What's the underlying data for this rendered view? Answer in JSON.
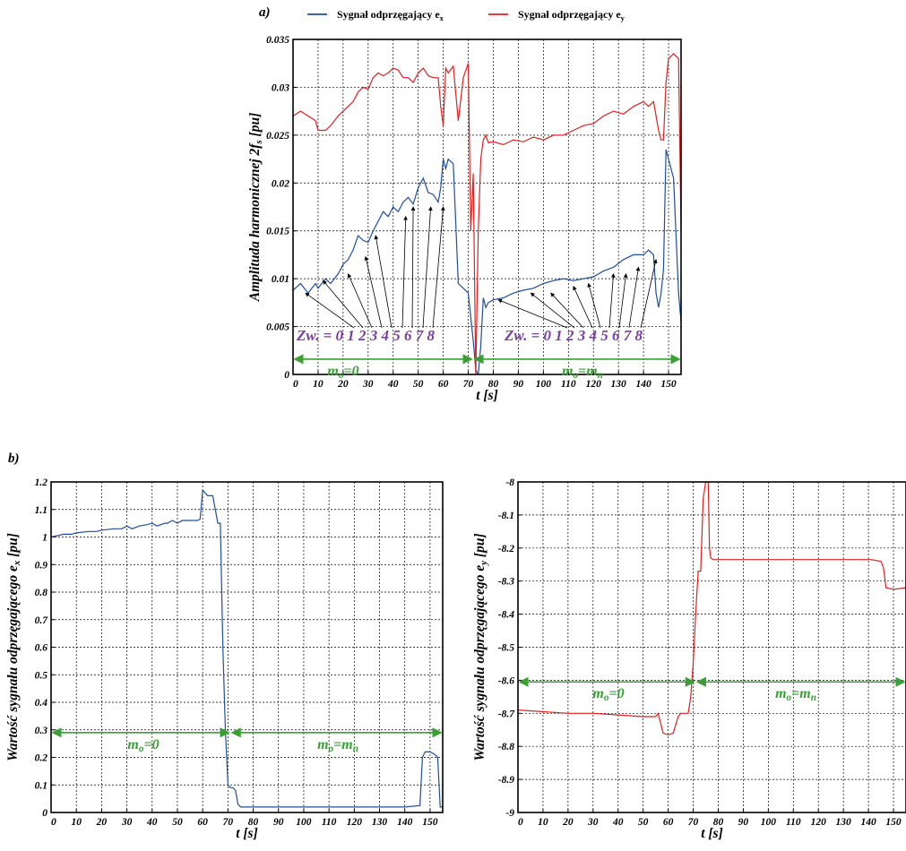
{
  "chart_data": [
    {
      "type": "line",
      "panel_label": "a)",
      "xlabel": "t [s]",
      "ylabel": "Amplituda harmonicznej 2f",
      "ylabel_sub": "s",
      "ylabel_unit": " [pu]",
      "xlim": [
        0,
        155
      ],
      "ylim": [
        0,
        0.035
      ],
      "x_ticks": [
        0,
        10,
        20,
        30,
        40,
        50,
        60,
        70,
        80,
        90,
        100,
        110,
        120,
        130,
        140,
        150
      ],
      "x_tick_labels": [
        "0",
        "10",
        "20",
        "30",
        "40",
        "50",
        "60",
        "70",
        "80",
        "90",
        "100",
        "110",
        "120",
        "130",
        "140",
        "150"
      ],
      "y_ticks": [
        0,
        0.005,
        0.01,
        0.015,
        0.02,
        0.025,
        0.03,
        0.035
      ],
      "y_tick_labels": [
        "0",
        "0.005",
        "0.01",
        "0.015",
        "0.02",
        "0.025",
        "0.03",
        "0.035"
      ],
      "grid": true,
      "legend": [
        {
          "text": "Sygnał odprzęgający e",
          "sub": "x",
          "color": "#1f4e9c"
        },
        {
          "text": "Sygnał odprzęgający e",
          "sub": "y",
          "color": "#e02020"
        }
      ],
      "legend_position": "top",
      "series": [
        {
          "name": "Sygnał odprzęgający ex",
          "color": "#1f4e9c",
          "x": [
            0,
            3,
            6,
            9,
            10,
            13,
            15,
            18,
            20,
            22,
            24,
            26,
            28,
            30,
            32,
            34,
            36,
            38,
            40,
            42,
            44,
            46,
            48,
            50,
            52,
            54,
            56,
            58,
            59,
            60,
            61,
            62,
            64,
            66,
            68,
            70,
            71,
            72,
            73,
            74,
            75,
            76,
            77,
            78,
            80,
            84,
            88,
            92,
            96,
            100,
            104,
            108,
            112,
            116,
            120,
            124,
            128,
            132,
            136,
            140,
            142,
            144,
            145,
            146,
            147,
            148,
            149,
            150,
            152,
            154,
            155
          ],
          "y": [
            0.0088,
            0.0095,
            0.0085,
            0.0095,
            0.009,
            0.01,
            0.0095,
            0.0105,
            0.0115,
            0.012,
            0.013,
            0.0145,
            0.014,
            0.0138,
            0.015,
            0.016,
            0.017,
            0.0165,
            0.0175,
            0.017,
            0.018,
            0.0185,
            0.0178,
            0.0195,
            0.0205,
            0.019,
            0.0188,
            0.018,
            0.0195,
            0.0225,
            0.0215,
            0.0225,
            0.022,
            0.0095,
            0.009,
            0.0085,
            0.006,
            0.0035,
            0.0005,
            0.0,
            0.003,
            0.008,
            0.007,
            0.0075,
            0.0078,
            0.008,
            0.0085,
            0.0088,
            0.009,
            0.0095,
            0.0098,
            0.01,
            0.0098,
            0.01,
            0.0102,
            0.0108,
            0.0112,
            0.012,
            0.0125,
            0.0125,
            0.013,
            0.0125,
            0.0085,
            0.007,
            0.0085,
            0.011,
            0.0235,
            0.0225,
            0.0205,
            0.0085,
            0.0055
          ]
        },
        {
          "name": "Sygnał odprzęgający ey",
          "color": "#e02020",
          "x": [
            0,
            3,
            6,
            9,
            10,
            13,
            15,
            18,
            20,
            22,
            24,
            26,
            28,
            30,
            32,
            34,
            36,
            38,
            40,
            42,
            44,
            46,
            48,
            50,
            52,
            54,
            56,
            58,
            59,
            60,
            61,
            62,
            64,
            66,
            68,
            70,
            71,
            72,
            73,
            74,
            75,
            76,
            77,
            78,
            80,
            84,
            88,
            92,
            96,
            100,
            104,
            108,
            112,
            116,
            120,
            124,
            128,
            132,
            136,
            140,
            142,
            144,
            145,
            146,
            147,
            148,
            149,
            150,
            152,
            154,
            155
          ],
          "y": [
            0.027,
            0.0275,
            0.027,
            0.0265,
            0.0255,
            0.0255,
            0.026,
            0.027,
            0.0275,
            0.028,
            0.0285,
            0.0295,
            0.03,
            0.0298,
            0.031,
            0.0315,
            0.0312,
            0.0315,
            0.032,
            0.0318,
            0.031,
            0.031,
            0.0305,
            0.0315,
            0.032,
            0.0312,
            0.031,
            0.031,
            0.028,
            0.026,
            0.032,
            0.0315,
            0.0322,
            0.0265,
            0.031,
            0.0325,
            0.015,
            0.021,
            0.0,
            0.015,
            0.0225,
            0.0245,
            0.025,
            0.0242,
            0.0243,
            0.024,
            0.0245,
            0.0243,
            0.0248,
            0.0245,
            0.025,
            0.025,
            0.0255,
            0.026,
            0.0262,
            0.027,
            0.0275,
            0.0272,
            0.028,
            0.0285,
            0.028,
            0.0285,
            0.027,
            0.0255,
            0.0245,
            0.0245,
            0.0305,
            0.033,
            0.0335,
            0.033,
            0.015
          ]
        }
      ],
      "annotations": {
        "zw_left": "Zw. = 0 1 2 3 4 5 6 7 8",
        "zw_right": "Zw. = 0 1 2 3 4 5 6 7 8",
        "mode_left": "m",
        "mode_left_sub": "o",
        "mode_left_rhs": "=0",
        "mode_right": "m",
        "mode_right_sub": "o",
        "mode_right_rhs": "=m",
        "mode_right_rhs_sub": "n"
      }
    },
    {
      "type": "line",
      "panel_label": "b)",
      "xlabel": "t [s]",
      "ylabel": "Wartość sygnału odprzęgającego e",
      "ylabel_sub": "x",
      "ylabel_unit": " [pu]",
      "xlim": [
        0,
        155
      ],
      "ylim": [
        0,
        1.2
      ],
      "x_ticks": [
        0,
        10,
        20,
        30,
        40,
        50,
        60,
        70,
        80,
        90,
        100,
        110,
        120,
        130,
        140,
        150
      ],
      "x_tick_labels": [
        "0",
        "10",
        "20",
        "30",
        "40",
        "50",
        "60",
        "70",
        "80",
        "90",
        "100",
        "110",
        "120",
        "130",
        "140",
        "150"
      ],
      "y_ticks": [
        0,
        0.1,
        0.2,
        0.3,
        0.4,
        0.5,
        0.6,
        0.7,
        0.8,
        0.9,
        1.0,
        1.1,
        1.2
      ],
      "y_tick_labels": [
        "0",
        "0.1",
        "0.2",
        "0.3",
        "0.4",
        "0.5",
        "0.6",
        "0.7",
        "0.8",
        "0.9",
        "1",
        "1.1",
        "1.2"
      ],
      "grid": true,
      "series": [
        {
          "color": "#1f4e9c",
          "x": [
            0,
            5,
            8,
            10,
            15,
            18,
            20,
            25,
            28,
            30,
            32,
            35,
            38,
            40,
            42,
            45,
            46,
            48,
            50,
            52,
            54,
            56,
            58,
            59,
            60,
            62,
            64,
            66,
            67,
            68,
            69,
            70,
            71,
            72,
            73,
            74,
            75,
            80,
            90,
            100,
            110,
            120,
            130,
            140,
            146,
            147,
            148,
            150,
            152,
            153,
            154,
            155
          ],
          "y": [
            1.0,
            1.01,
            1.01,
            1.015,
            1.02,
            1.02,
            1.025,
            1.03,
            1.03,
            1.04,
            1.03,
            1.04,
            1.045,
            1.05,
            1.04,
            1.05,
            1.05,
            1.06,
            1.05,
            1.06,
            1.06,
            1.06,
            1.06,
            1.065,
            1.17,
            1.15,
            1.15,
            1.05,
            1.05,
            0.6,
            0.3,
            0.1,
            0.09,
            0.09,
            0.08,
            0.03,
            0.02,
            0.02,
            0.02,
            0.02,
            0.02,
            0.02,
            0.02,
            0.02,
            0.025,
            0.2,
            0.22,
            0.22,
            0.21,
            0.2,
            0.02,
            0.02
          ]
        }
      ],
      "annotations": {
        "mode_left": "m",
        "mode_left_sub": "o",
        "mode_left_rhs": "=0",
        "mode_right": "m",
        "mode_right_sub": "o",
        "mode_right_rhs": "=m",
        "mode_right_rhs_sub": "n"
      }
    },
    {
      "type": "line",
      "xlabel": "t [s]",
      "ylabel": "Wartość sygnału odprzęgającego e",
      "ylabel_sub": "y",
      "ylabel_unit": " [pu]",
      "xlim": [
        0,
        155
      ],
      "ylim": [
        -9,
        -8
      ],
      "x_ticks": [
        0,
        10,
        20,
        30,
        40,
        50,
        60,
        70,
        80,
        90,
        100,
        110,
        120,
        130,
        140,
        150
      ],
      "x_tick_labels": [
        "0",
        "10",
        "20",
        "30",
        "40",
        "50",
        "60",
        "70",
        "80",
        "90",
        "100",
        "110",
        "120",
        "130",
        "140",
        "150"
      ],
      "y_ticks": [
        -9,
        -8.9,
        -8.8,
        -8.7,
        -8.6,
        -8.5,
        -8.4,
        -8.3,
        -8.2,
        -8.1,
        -8
      ],
      "y_tick_labels": [
        "-9",
        "-8.9",
        "-8.8",
        "-8.7",
        "-8.6",
        "-8.5",
        "-8.4",
        "-8.3",
        "-8.2",
        "-8.1",
        "-8"
      ],
      "grid": true,
      "series": [
        {
          "color": "#e02020",
          "x": [
            0,
            10,
            20,
            30,
            40,
            50,
            55,
            56,
            58,
            60,
            62,
            64,
            65,
            66,
            68,
            69,
            70,
            71,
            72,
            73,
            74,
            75,
            76,
            76.5,
            77,
            78,
            80,
            90,
            100,
            110,
            120,
            130,
            140,
            141,
            145,
            146,
            147,
            150,
            155
          ],
          "y": [
            -8.69,
            -8.695,
            -8.7,
            -8.7,
            -8.705,
            -8.71,
            -8.71,
            -8.7,
            -8.76,
            -8.765,
            -8.76,
            -8.71,
            -8.7,
            -8.7,
            -8.7,
            -8.65,
            -8.55,
            -8.4,
            -8.27,
            -8.27,
            -8.05,
            -8.0,
            -8.0,
            -8.2,
            -8.23,
            -8.235,
            -8.235,
            -8.235,
            -8.235,
            -8.235,
            -8.235,
            -8.235,
            -8.235,
            -8.235,
            -8.24,
            -8.26,
            -8.32,
            -8.325,
            -8.32
          ]
        }
      ],
      "annotations": {
        "mode_left": "m",
        "mode_left_sub": "o",
        "mode_left_rhs": "=0",
        "mode_right": "m",
        "mode_right_sub": "o",
        "mode_right_rhs": "=m",
        "mode_right_rhs_sub": "n"
      }
    }
  ]
}
